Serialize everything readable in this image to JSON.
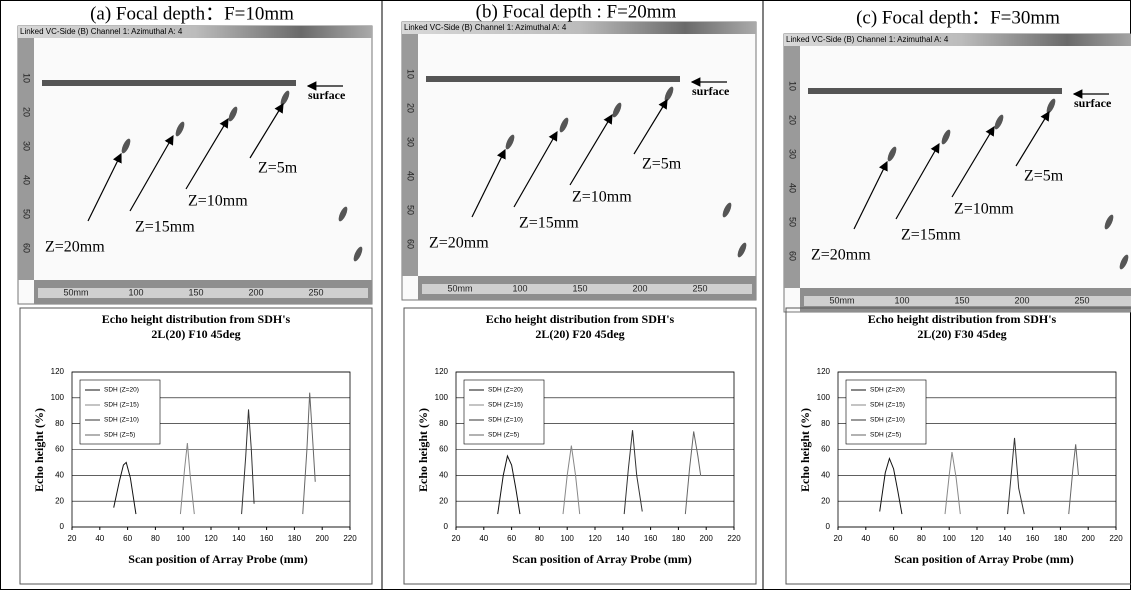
{
  "panels": [
    {
      "title": "(a) Focal depth：F=10mm",
      "header": "Linked VC-Side (B) Channel 1: Azimuthal   A: 4",
      "labels": [
        "surface",
        "Z=5m",
        "Z=10mm",
        "Z=15mm",
        "Z=20mm"
      ],
      "scale_x": [
        "50mm",
        "100",
        "150",
        "200",
        "250"
      ],
      "scale_y": [
        "10",
        "20",
        "30",
        "40",
        "50",
        "60"
      ]
    },
    {
      "title": "(b) Focal depth : F=20mm",
      "header": "Linked VC-Side (B) Channel 1: Azimuthal   A: 4",
      "labels": [
        "surface",
        "Z=5m",
        "Z=10mm",
        "Z=15mm",
        "Z=20mm"
      ],
      "scale_x": [
        "50mm",
        "100",
        "150",
        "200",
        "250"
      ],
      "scale_y": [
        "10",
        "20",
        "30",
        "40",
        "50",
        "60"
      ]
    },
    {
      "title": "(c) Focal depth：F=30mm",
      "header": "Linked VC-Side (B) Channel 1: Azimuthal   A: 4",
      "labels": [
        "surface",
        "Z=5m",
        "Z=10mm",
        "Z=15mm",
        "Z=20mm"
      ],
      "scale_x": [
        "50mm",
        "100",
        "150",
        "200",
        "250"
      ],
      "scale_y": [
        "10",
        "20",
        "30",
        "40",
        "50",
        "60"
      ]
    }
  ],
  "chart_data": [
    {
      "type": "line",
      "title": "Echo height distribution from SDH's",
      "subtitle": "2L(20)  F10  45deg",
      "x_label": "Scan position of Array Probe   (mm)",
      "y_label": "Echo height   (%)",
      "xlim": [
        20,
        220
      ],
      "xticks": [
        20,
        40,
        60,
        80,
        100,
        120,
        140,
        160,
        180,
        200,
        220
      ],
      "ylim": [
        0,
        120
      ],
      "yticks": [
        0,
        20,
        40,
        60,
        80,
        100,
        120
      ],
      "grid": true,
      "legend": "upper left",
      "series": [
        {
          "name": "SDH (Z=20)",
          "color": "#111111",
          "x": [
            50,
            54,
            57,
            59,
            62,
            66
          ],
          "values": [
            15,
            35,
            48,
            50,
            38,
            10
          ]
        },
        {
          "name": "SDH (Z=15)",
          "color": "#888888",
          "x": [
            98,
            101,
            103,
            105,
            108
          ],
          "values": [
            10,
            45,
            65,
            40,
            10
          ]
        },
        {
          "name": "SDH (Z=10)",
          "color": "#333333",
          "x": [
            142,
            145,
            147,
            149,
            151
          ],
          "values": [
            10,
            55,
            91,
            60,
            18
          ]
        },
        {
          "name": "SDH (Z=5)",
          "color": "#666666",
          "x": [
            186,
            189,
            191,
            193,
            195
          ],
          "values": [
            10,
            60,
            104,
            70,
            35
          ]
        }
      ]
    },
    {
      "type": "line",
      "title": "Echo height distribution from SDH's",
      "subtitle": "2L(20)  F20  45deg",
      "x_label": "Scan position of Array Probe   (mm)",
      "y_label": "Echo height   (%)",
      "xlim": [
        20,
        220
      ],
      "xticks": [
        20,
        40,
        60,
        80,
        100,
        120,
        140,
        160,
        180,
        200,
        220
      ],
      "ylim": [
        0,
        120
      ],
      "yticks": [
        0,
        20,
        40,
        60,
        80,
        100,
        120
      ],
      "grid": true,
      "legend": "upper left",
      "series": [
        {
          "name": "SDH (Z=20)",
          "color": "#111111",
          "x": [
            50,
            54,
            57,
            60,
            63,
            66
          ],
          "values": [
            10,
            40,
            55,
            48,
            30,
            10
          ]
        },
        {
          "name": "SDH (Z=15)",
          "color": "#888888",
          "x": [
            97,
            100,
            103,
            106,
            109
          ],
          "values": [
            10,
            40,
            63,
            40,
            10
          ]
        },
        {
          "name": "SDH (Z=10)",
          "color": "#333333",
          "x": [
            141,
            144,
            147,
            150,
            154
          ],
          "values": [
            10,
            45,
            75,
            40,
            12
          ]
        },
        {
          "name": "SDH (Z=5)",
          "color": "#666666",
          "x": [
            185,
            188,
            191,
            194,
            196
          ],
          "values": [
            10,
            45,
            74,
            55,
            40
          ]
        }
      ]
    },
    {
      "type": "line",
      "title": "Echo height distribution from SDH's",
      "subtitle": "2L(20)  F30  45deg",
      "x_label": "Scan position of Array Probe   (mm)",
      "y_label": "Echo height   (%)",
      "xlim": [
        20,
        220
      ],
      "xticks": [
        20,
        40,
        60,
        80,
        100,
        120,
        140,
        160,
        180,
        200,
        220
      ],
      "ylim": [
        0,
        120
      ],
      "yticks": [
        0,
        20,
        40,
        60,
        80,
        100,
        120
      ],
      "grid": true,
      "legend": "upper left",
      "series": [
        {
          "name": "SDH (Z=20)",
          "color": "#111111",
          "x": [
            50,
            54,
            57,
            60,
            63,
            66
          ],
          "values": [
            12,
            42,
            53,
            45,
            28,
            10
          ]
        },
        {
          "name": "SDH (Z=15)",
          "color": "#888888",
          "x": [
            97,
            100,
            102,
            105,
            108
          ],
          "values": [
            10,
            40,
            58,
            38,
            10
          ]
        },
        {
          "name": "SDH (Z=10)",
          "color": "#333333",
          "x": [
            142,
            145,
            147,
            150,
            154
          ],
          "values": [
            10,
            45,
            69,
            30,
            10
          ]
        },
        {
          "name": "SDH (Z=5)",
          "color": "#666666",
          "x": [
            186,
            189,
            191,
            193
          ],
          "values": [
            10,
            45,
            64,
            40
          ]
        }
      ]
    }
  ]
}
